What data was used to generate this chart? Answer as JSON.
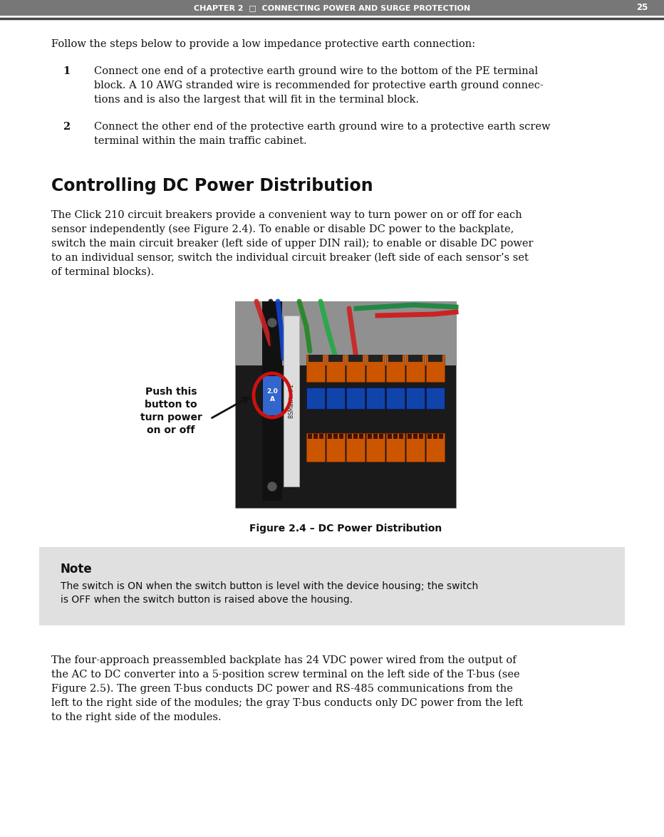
{
  "page_bg": "#ffffff",
  "header_bg": "#777777",
  "header_text": "CHAPTER 2  □  CONNECTING POWER AND SURGE PROTECTION",
  "header_page_num": "25",
  "header_text_color": "#ffffff",
  "intro_text": "Follow the steps below to provide a low impedance protective earth connection:",
  "step1_num": "1",
  "step1_lines": [
    "Connect one end of a protective earth ground wire to the bottom of the PE terminal",
    "block. A 10 AWG stranded wire is recommended for protective earth ground connec-",
    "tions and is also the largest that will fit in the terminal block."
  ],
  "step2_num": "2",
  "step2_lines": [
    "Connect the other end of the protective earth ground wire to a protective earth screw",
    "terminal within the main traffic cabinet."
  ],
  "section_title": "Controlling DC Power Distribution",
  "section_lines": [
    "The Click 210 circuit breakers provide a convenient way to turn power on or off for each",
    "sensor independently (see Figure 2.4). To enable or disable DC power to the backplate,",
    "switch the main circuit breaker (left side of upper DIN rail); to enable or disable DC power",
    "to an individual sensor, switch the individual circuit breaker (left side of each sensor’s set",
    "of terminal blocks)."
  ],
  "fig_annotation_lines": [
    "Push this",
    "button to",
    "turn power",
    "on or off"
  ],
  "fig_caption": "Figure 2.4 – DC Power Distribution",
  "note_bg": "#e0e0e0",
  "note_title": "Note",
  "note_lines": [
    "The switch is ON when the switch button is level with the device housing; the switch",
    "is OFF when the switch button is raised above the housing."
  ],
  "closing_lines": [
    "The four-approach preassembled backplate has 24 VDC power wired from the output of",
    "the AC to DC converter into a 5-position screw terminal on the left side of the T-bus (see",
    "Figure 2.5). The green T-bus conducts DC power and RS-485 communications from the",
    "left to the right side of the modules; the gray T-bus conducts only DC power from the left",
    "to the right side of the modules."
  ],
  "body_fs": 10.5,
  "step_num_fs": 10.5,
  "section_title_fs": 17,
  "note_title_fs": 12,
  "note_body_fs": 10,
  "caption_fs": 10,
  "annotation_fs": 10
}
